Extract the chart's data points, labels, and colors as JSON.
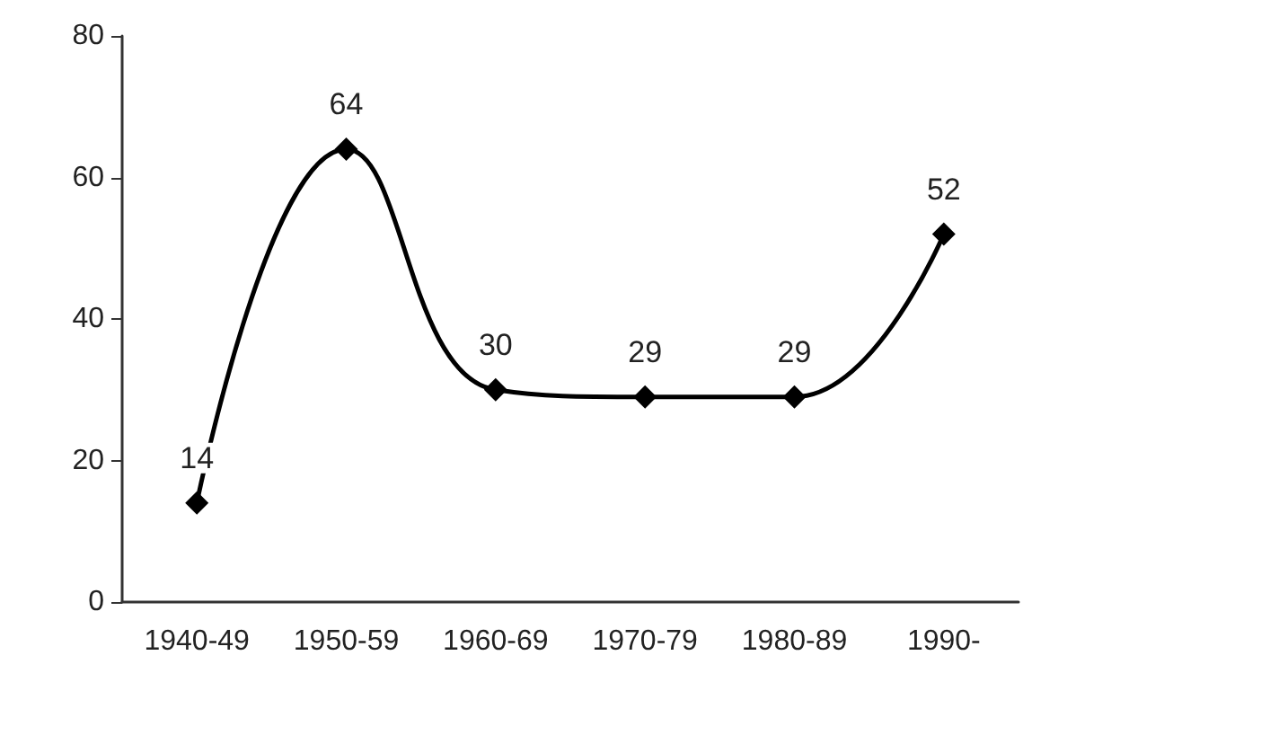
{
  "chart_data": {
    "type": "line",
    "categories": [
      "1940-49",
      "1950-59",
      "1960-69",
      "1970-79",
      "1980-89",
      "1990-"
    ],
    "series": [
      {
        "color": "#000000",
        "values": [
          14,
          64,
          30,
          29,
          29,
          52
        ]
      }
    ],
    "ylim": [
      0,
      80
    ],
    "yticks": [
      0,
      20,
      40,
      60,
      80
    ],
    "grid": false,
    "marker": "diamond",
    "line_style": "solid",
    "data_labels": true
  }
}
